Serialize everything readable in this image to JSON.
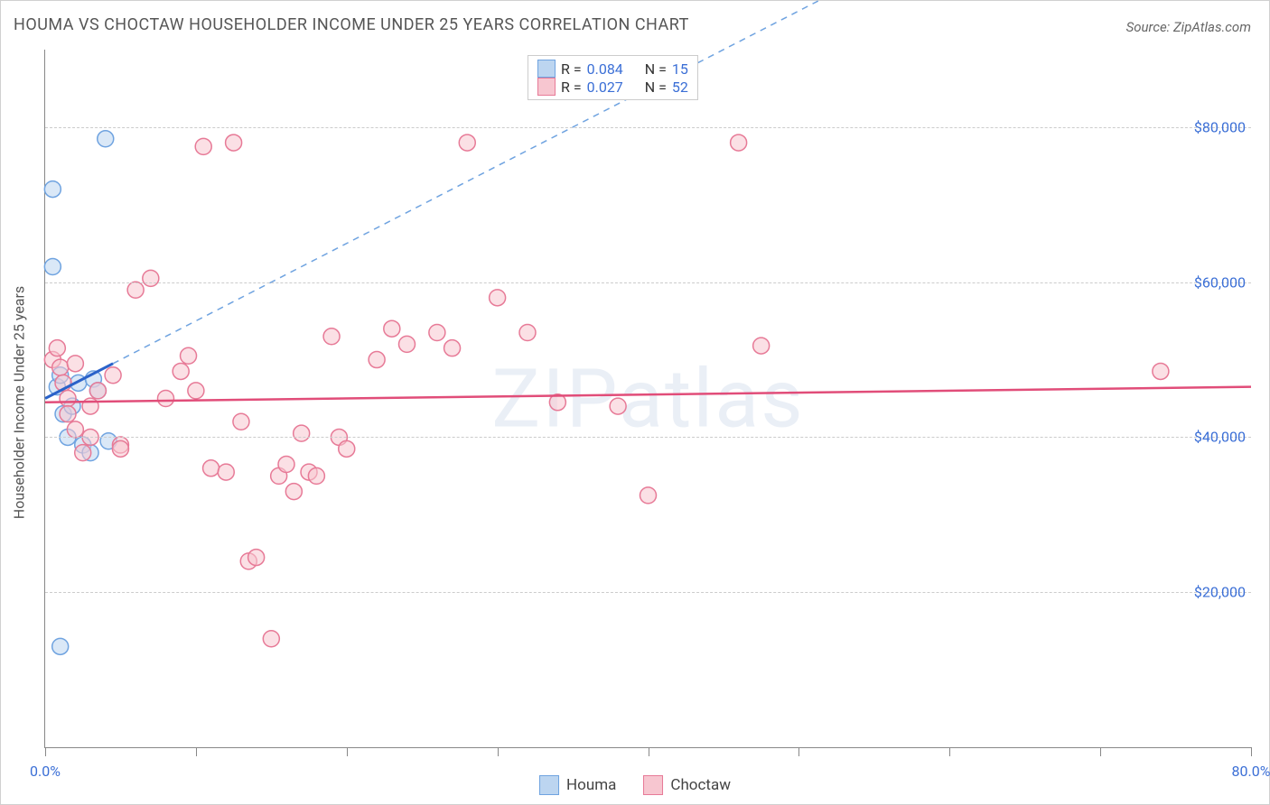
{
  "title": "HOUMA VS CHOCTAW HOUSEHOLDER INCOME UNDER 25 YEARS CORRELATION CHART",
  "source": "Source: ZipAtlas.com",
  "watermark": "ZIPatlas",
  "ylabel": "Householder Income Under 25 years",
  "chart": {
    "type": "scatter",
    "xlim": [
      0,
      80
    ],
    "ylim": [
      0,
      90000
    ],
    "xtick_positions": [
      0,
      10,
      20,
      30,
      40,
      50,
      60,
      70,
      80
    ],
    "xtick_labels": {
      "0": "0.0%",
      "80": "80.0%"
    },
    "ytick_positions": [
      20000,
      40000,
      60000,
      80000
    ],
    "ytick_labels": [
      "$20,000",
      "$40,000",
      "$60,000",
      "$80,000"
    ],
    "grid_color": "#cccccc",
    "axis_color": "#888888",
    "background_color": "#ffffff",
    "marker_radius": 9,
    "marker_stroke_width": 1.5,
    "series": [
      {
        "name": "Houma",
        "fill_color": "#bcd5f0",
        "stroke_color": "#6fa3e0",
        "fill_opacity": 0.55,
        "R": 0.084,
        "N": 15,
        "trend": {
          "x1": 0,
          "y1": 45000,
          "x2": 4.5,
          "y2": 49500,
          "solid_color": "#2a62c9",
          "solid_width": 3
        },
        "trend_dash": {
          "x1": 4.5,
          "y1": 49500,
          "x2": 55,
          "y2": 100000,
          "color": "#6fa3e0",
          "width": 1.5,
          "dash": "7,6"
        },
        "points": [
          [
            0.5,
            72000
          ],
          [
            0.5,
            62000
          ],
          [
            0.8,
            46500
          ],
          [
            1.2,
            43000
          ],
          [
            1.0,
            48000
          ],
          [
            1.5,
            40000
          ],
          [
            1.8,
            44000
          ],
          [
            2.2,
            47000
          ],
          [
            2.5,
            39000
          ],
          [
            3.0,
            38000
          ],
          [
            3.2,
            47500
          ],
          [
            3.5,
            46000
          ],
          [
            4.0,
            78500
          ],
          [
            4.2,
            39500
          ],
          [
            1.0,
            13000
          ]
        ]
      },
      {
        "name": "Choctaw",
        "fill_color": "#f7c6d0",
        "stroke_color": "#e77a97",
        "fill_opacity": 0.55,
        "R": 0.027,
        "N": 52,
        "trend": {
          "x1": 0,
          "y1": 44500,
          "x2": 80,
          "y2": 46500,
          "solid_color": "#e14d79",
          "solid_width": 2.5
        },
        "points": [
          [
            0.5,
            50000
          ],
          [
            0.8,
            51500
          ],
          [
            1.0,
            49000
          ],
          [
            1.2,
            47000
          ],
          [
            1.5,
            45000
          ],
          [
            1.5,
            43000
          ],
          [
            2.0,
            41000
          ],
          [
            2.0,
            49500
          ],
          [
            2.5,
            38000
          ],
          [
            3.0,
            40000
          ],
          [
            3.0,
            44000
          ],
          [
            3.5,
            46000
          ],
          [
            4.5,
            48000
          ],
          [
            5.0,
            39000
          ],
          [
            5.0,
            38500
          ],
          [
            6.0,
            59000
          ],
          [
            7.0,
            60500
          ],
          [
            8.0,
            45000
          ],
          [
            9.0,
            48500
          ],
          [
            9.5,
            50500
          ],
          [
            10.0,
            46000
          ],
          [
            10.5,
            77500
          ],
          [
            11.0,
            36000
          ],
          [
            12.0,
            35500
          ],
          [
            12.5,
            78000
          ],
          [
            13.0,
            42000
          ],
          [
            13.5,
            24000
          ],
          [
            14.0,
            24500
          ],
          [
            15.0,
            14000
          ],
          [
            15.5,
            35000
          ],
          [
            16.0,
            36500
          ],
          [
            16.5,
            33000
          ],
          [
            17.0,
            40500
          ],
          [
            17.5,
            35500
          ],
          [
            18.0,
            35000
          ],
          [
            19.0,
            53000
          ],
          [
            19.5,
            40000
          ],
          [
            20.0,
            38500
          ],
          [
            22.0,
            50000
          ],
          [
            23.0,
            54000
          ],
          [
            24.0,
            52000
          ],
          [
            26.0,
            53500
          ],
          [
            27.0,
            51500
          ],
          [
            28.0,
            78000
          ],
          [
            30.0,
            58000
          ],
          [
            32.0,
            53500
          ],
          [
            34.0,
            44500
          ],
          [
            38.0,
            44000
          ],
          [
            40.0,
            32500
          ],
          [
            46.0,
            78000
          ],
          [
            47.5,
            51800
          ],
          [
            74.0,
            48500
          ]
        ]
      }
    ]
  },
  "legend_top": {
    "rows": [
      {
        "sw_fill": "#bcd5f0",
        "sw_stroke": "#6fa3e0",
        "R": "0.084",
        "N": "15"
      },
      {
        "sw_fill": "#f7c6d0",
        "sw_stroke": "#e77a97",
        "R": "0.027",
        "N": "52"
      }
    ],
    "labels": {
      "R": "R =",
      "N": "N ="
    }
  },
  "legend_bottom": {
    "items": [
      {
        "label": "Houma",
        "sw_fill": "#bcd5f0",
        "sw_stroke": "#6fa3e0"
      },
      {
        "label": "Choctaw",
        "sw_fill": "#f7c6d0",
        "sw_stroke": "#e77a97"
      }
    ]
  }
}
